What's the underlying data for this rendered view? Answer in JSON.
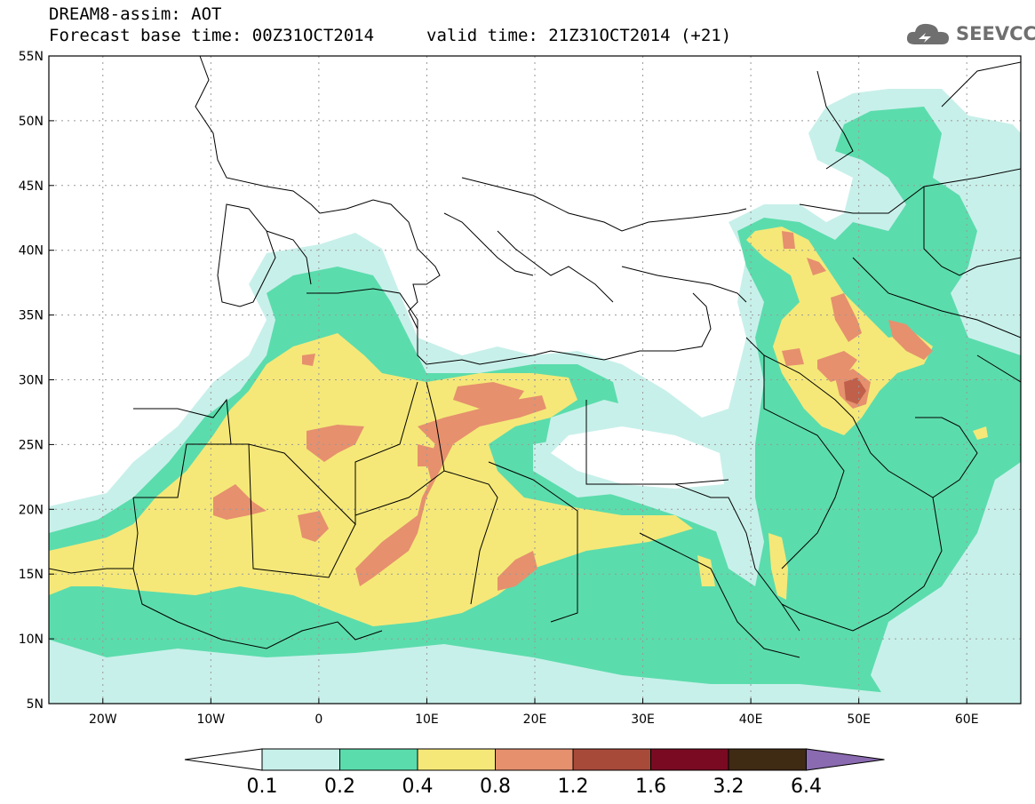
{
  "header": {
    "title": "DREAM8-assim: AOT",
    "base_time": "Forecast base time: 00Z31OCT2014",
    "valid_time": "valid time: 21Z31OCT2014 (+21)"
  },
  "logo": {
    "text": "SEEVCCC",
    "icon": "cloud-icon"
  },
  "map": {
    "lat_labels": [
      "55N",
      "50N",
      "45N",
      "40N",
      "35N",
      "30N",
      "25N",
      "20N",
      "15N",
      "10N",
      "5N"
    ],
    "lon_labels": [
      "20W",
      "10W",
      "0",
      "10E",
      "20E",
      "30E",
      "40E",
      "50E",
      "60E"
    ],
    "gridlines": true
  },
  "legend": {
    "labels": [
      "0.1",
      "0.2",
      "0.4",
      "0.8",
      "1.2",
      "1.6",
      "3.2",
      "6.4"
    ],
    "colors": [
      "#ffffff",
      "#c8f0ea",
      "#5bdcac",
      "#f5e878",
      "#e6906e",
      "#a84a3a",
      "#7a0a22",
      "#3f2a14",
      "#8a6ab0"
    ]
  },
  "colors": {
    "aot_0_1": "#c8f0ea",
    "aot_0_2": "#5bdcac",
    "aot_0_4": "#f5e878",
    "aot_0_8": "#e6906e",
    "aot_1_2": "#a84a3a"
  }
}
